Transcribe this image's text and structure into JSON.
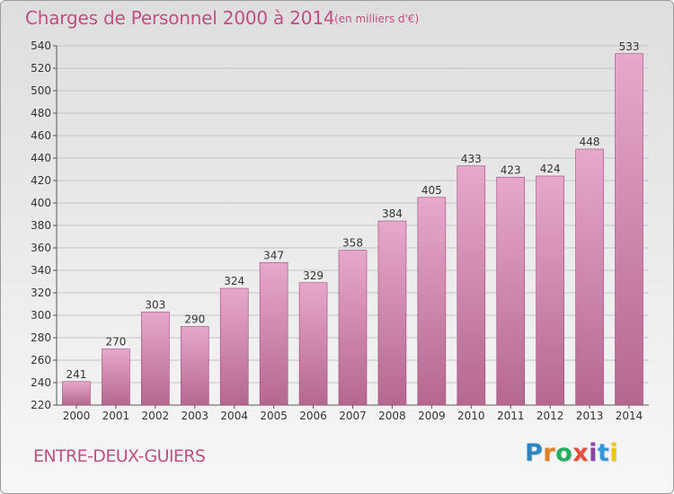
{
  "header": {
    "title": "Charges de Personnel 2000 à 2014",
    "subtitle": "(en milliers d'€)"
  },
  "footer": {
    "commune": "ENTRE-DEUX-GUIERS",
    "brand_letters": [
      "P",
      "r",
      "o",
      "x",
      "i",
      "t",
      "i"
    ],
    "brand_colors": [
      "#2e86c1",
      "#e67e22",
      "#27ae60",
      "#e74c3c",
      "#8e44ad",
      "#3498db",
      "#f1c40f"
    ]
  },
  "chart_data": {
    "type": "bar",
    "categories": [
      "2000",
      "2001",
      "2002",
      "2003",
      "2004",
      "2005",
      "2006",
      "2007",
      "2008",
      "2009",
      "2010",
      "2011",
      "2012",
      "2013",
      "2014"
    ],
    "values": [
      241,
      270,
      303,
      290,
      324,
      347,
      329,
      358,
      384,
      405,
      433,
      423,
      424,
      448,
      533
    ],
    "ylim": [
      220,
      540
    ],
    "yticks": [
      220,
      240,
      260,
      280,
      300,
      320,
      340,
      360,
      380,
      400,
      420,
      440,
      460,
      480,
      500,
      520,
      540
    ],
    "grid": true,
    "bar_color": "#e0a0c4",
    "text_color": "#c0507f"
  }
}
